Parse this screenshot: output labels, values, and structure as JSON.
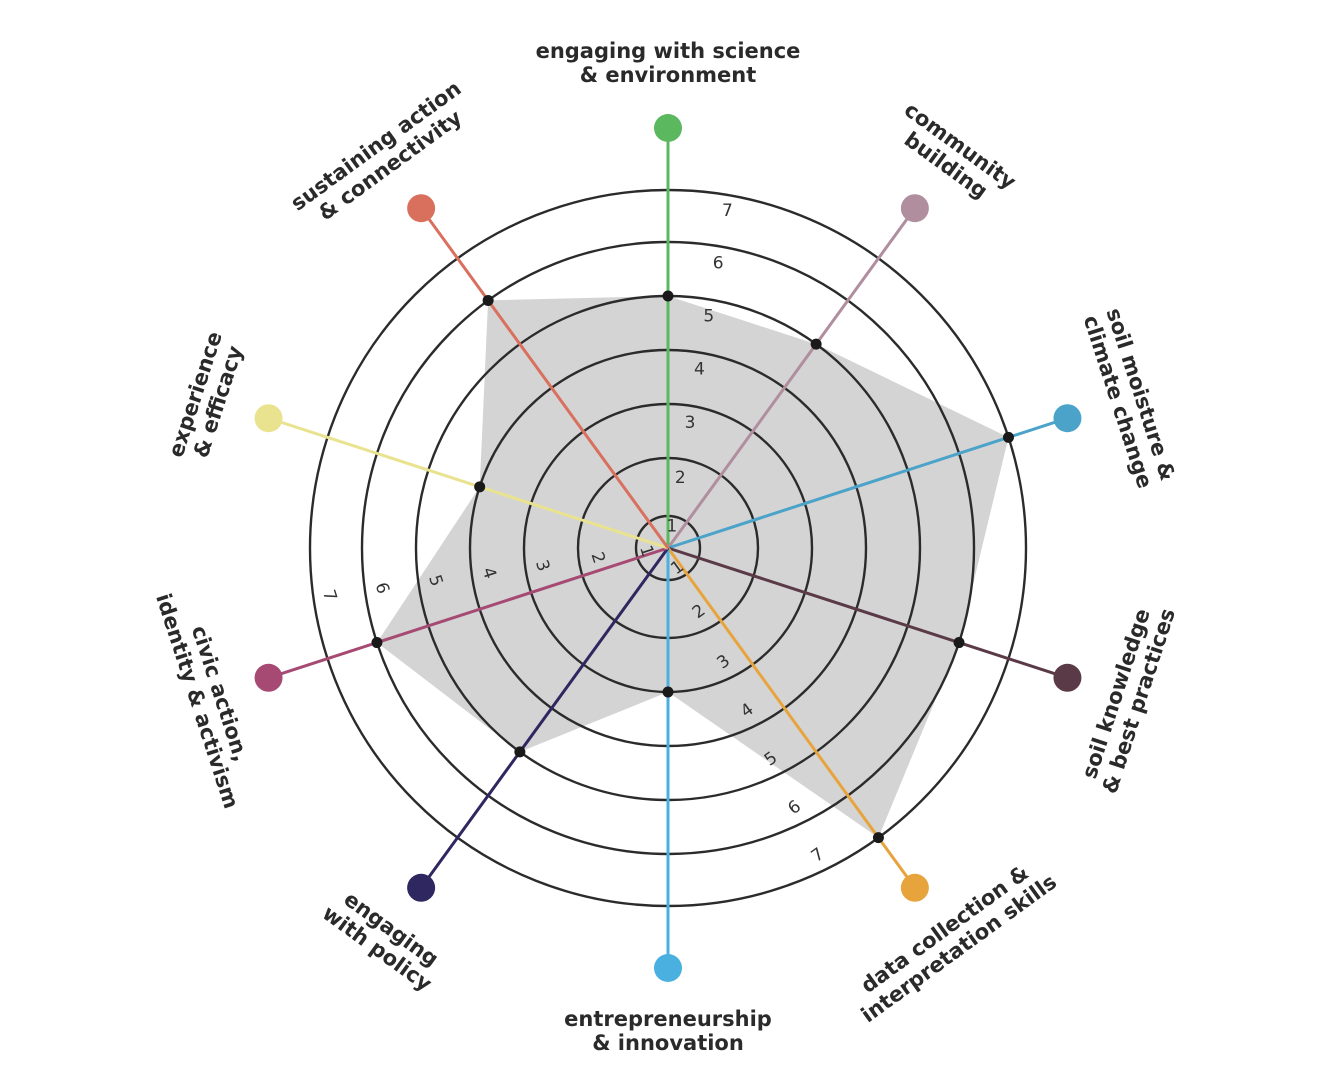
{
  "chart_data": {
    "type": "radar",
    "scale": {
      "min": 0,
      "max": 7,
      "rings": [
        1,
        2,
        3,
        4,
        5,
        6,
        7
      ]
    },
    "tick_labels": [
      "1",
      "2",
      "3",
      "4",
      "5",
      "6",
      "7"
    ],
    "grid": true,
    "fill_color": "#d4d4d4",
    "axes": [
      {
        "label_lines": [
          "engaging with science",
          "& environment"
        ],
        "value": 5,
        "color": "#5cb85f"
      },
      {
        "label_lines": [
          "community",
          "building"
        ],
        "value": 5,
        "color": "#b08e9e"
      },
      {
        "label_lines": [
          "soil moisture &",
          "climate change"
        ],
        "value": 7,
        "color": "#4ba3c9"
      },
      {
        "label_lines": [
          "soil knowledge",
          "& best practices"
        ],
        "value": 6,
        "color": "#5b3a48"
      },
      {
        "label_lines": [
          "data collection &",
          "interpretation skills"
        ],
        "value": 7,
        "color": "#e8a43c"
      },
      {
        "label_lines": [
          "entrepreneurship",
          "& innovation"
        ],
        "value": 3,
        "color": "#4ab0e0"
      },
      {
        "label_lines": [
          "engaging",
          "with policy"
        ],
        "value": 5,
        "color": "#2e2760"
      },
      {
        "label_lines": [
          "civic action,",
          "identity & activism"
        ],
        "value": 6,
        "color": "#a64a73"
      },
      {
        "label_lines": [
          "experience",
          "& efficacy"
        ],
        "value": 4,
        "color": "#e9e38f"
      },
      {
        "label_lines": [
          "sustaining action",
          "& connectivity"
        ],
        "value": 6,
        "color": "#d9705e"
      }
    ]
  }
}
